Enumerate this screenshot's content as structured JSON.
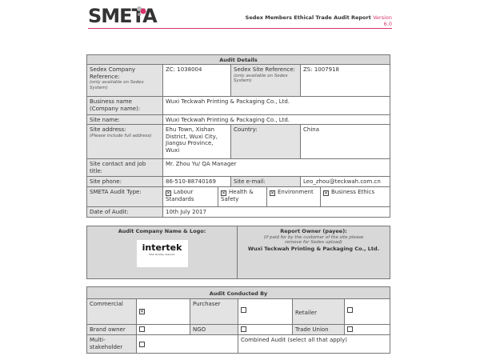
{
  "header": {
    "logo": "SMETA",
    "report_title": "Sedex Members Ethical Trade Audit Report",
    "version": "Version 6.0",
    "accent": "#d6336c"
  },
  "audit_details": {
    "title": "Audit Details",
    "company_ref_label": "Sedex Company Reference:",
    "company_ref_note": "(only available on Sedex System)",
    "company_ref": "ZC: 1038004",
    "site_ref_label": "Sedex Site Reference:",
    "site_ref_note": "(only available on Sedex System)",
    "site_ref": "ZS: 1007918",
    "business_name_label": "Business name (Company name):",
    "business_name": "Wuxi Teckwah Printing & Packaging Co., Ltd.",
    "site_name_label": "Site name:",
    "site_name": "Wuxi Teckwah Printing & Packaging Co., Ltd.",
    "site_address_label": "Site address:",
    "site_address_note": "(Please include full address)",
    "site_address": "Ehu Town, Xishan District, Wuxi City, Jiangsu Province, Wuxi",
    "country_label": "Country:",
    "country": "China",
    "contact_label": "Site contact and job title:",
    "contact": "Mr. Zhou Yu/ QA Manager",
    "phone_label": "Site phone:",
    "phone": "86-510-88740169",
    "email_label": "Site e-mail:",
    "email": "Leo_zhou@teckwah.com.cn",
    "audit_type_label": "SMETA Audit Type:",
    "audit_types": [
      {
        "label": "Labour Standards",
        "checked": true
      },
      {
        "label": "Health & Safety",
        "checked": true
      },
      {
        "label": "Environment",
        "checked": true
      },
      {
        "label": "Business Ethics",
        "checked": true
      }
    ],
    "date_label": "Date of Audit:",
    "date": "10th July 2017"
  },
  "audit_company": {
    "title": "Audit Company Name & Logo:",
    "logo": "intertek",
    "logo_tagline": "Total Quality. Assured.",
    "owner_title": "Report Owner (payee):",
    "owner_note": "(if paid for by the customer of the site please remove for Sedex upload)",
    "owner": "Wuxi Teckwah Printing & Packaging Co., Ltd."
  },
  "conducted_by": {
    "title": "Audit Conducted By",
    "commercial": "Commercial",
    "purchaser": "Purchaser",
    "retailer": "Retailer",
    "brand_owner": "Brand owner",
    "ngo": "NGO",
    "trade_union": "Trade Union",
    "multi": "Multi-stakeholder",
    "combined": "Combined Audit (select all that apply)",
    "commercial_checked": "☒"
  }
}
